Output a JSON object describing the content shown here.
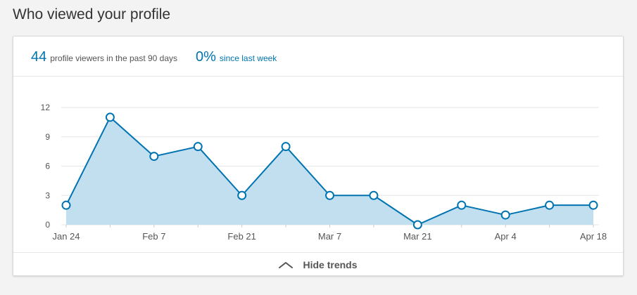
{
  "section": {
    "title": "Who viewed your profile"
  },
  "stats": {
    "viewers_value": "44",
    "viewers_label": "profile viewers in the past 90 days",
    "change_value": "0%",
    "change_label": "since last week"
  },
  "footer": {
    "toggle_label": "Hide trends",
    "toggle_icon": "chevron-up-icon"
  },
  "colors": {
    "accent": "#0073b1",
    "area_fill": "#c2dfef",
    "grid": "#e6e6e6"
  },
  "chart_data": {
    "type": "area",
    "title": "",
    "xlabel": "",
    "ylabel": "",
    "x": [
      "Jan 24",
      "Jan 31",
      "Feb 7",
      "Feb 14",
      "Feb 21",
      "Feb 28",
      "Mar 7",
      "Mar 14",
      "Mar 21",
      "Mar 28",
      "Apr 4",
      "Apr 11",
      "Apr 18"
    ],
    "x_tick_labels": [
      "Jan 24",
      "Feb 7",
      "Feb 21",
      "Mar 7",
      "Mar 21",
      "Apr 4",
      "Apr 18"
    ],
    "values": [
      2,
      11,
      7,
      8,
      3,
      8,
      3,
      3,
      0,
      2,
      1,
      2,
      2
    ],
    "y_ticks": [
      0,
      3,
      6,
      9,
      12
    ],
    "ylim": [
      0,
      12
    ],
    "grid": true,
    "markers": "hollow-circle"
  }
}
